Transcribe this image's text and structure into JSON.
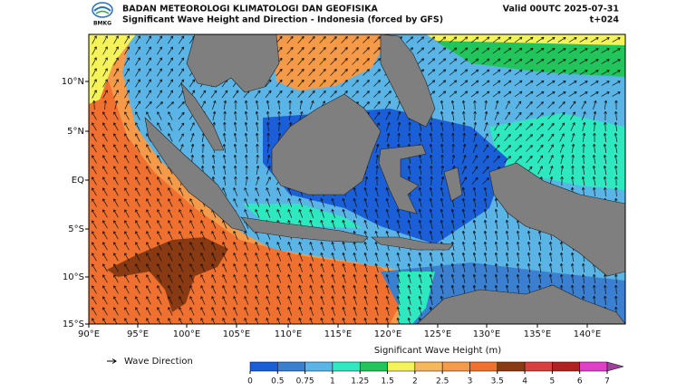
{
  "header": {
    "logo": "BMKG",
    "org": "BADAN METEOROLOGI KLIMATOLOGI DAN GEOFISIKA",
    "subtitle": "Significant Wave Height and Direction - Indonesia (forced by GFS)",
    "valid": "Valid 00UTC 2025-07-31",
    "step": "t+024"
  },
  "map": {
    "lat_labels": [
      "10°N",
      "5°N",
      "EQ",
      "5°S",
      "10°S",
      "15°S"
    ],
    "lon_labels": [
      "90°E",
      "95°E",
      "100°E",
      "105°E",
      "110°E",
      "115°E",
      "120°E",
      "125°E",
      "130°E",
      "135°E",
      "140°E"
    ]
  },
  "legend": {
    "arrow_label": "Wave Direction"
  },
  "colorbar": {
    "title": "Significant Wave Height (m)",
    "ticks": [
      0,
      0.5,
      0.75,
      1,
      1.25,
      1.5,
      2,
      2.5,
      3,
      3.5,
      4,
      5,
      6,
      7
    ],
    "colors": [
      "#1a5fd8",
      "#3a7fd0",
      "#5ab4e6",
      "#2ee8c0",
      "#22c45c",
      "#f4f45a",
      "#f5b85a",
      "#f59a48",
      "#f07030",
      "#8a3a12",
      "#d84040",
      "#b02222",
      "#e040c8"
    ],
    "extend_color": "#a0409a"
  }
}
